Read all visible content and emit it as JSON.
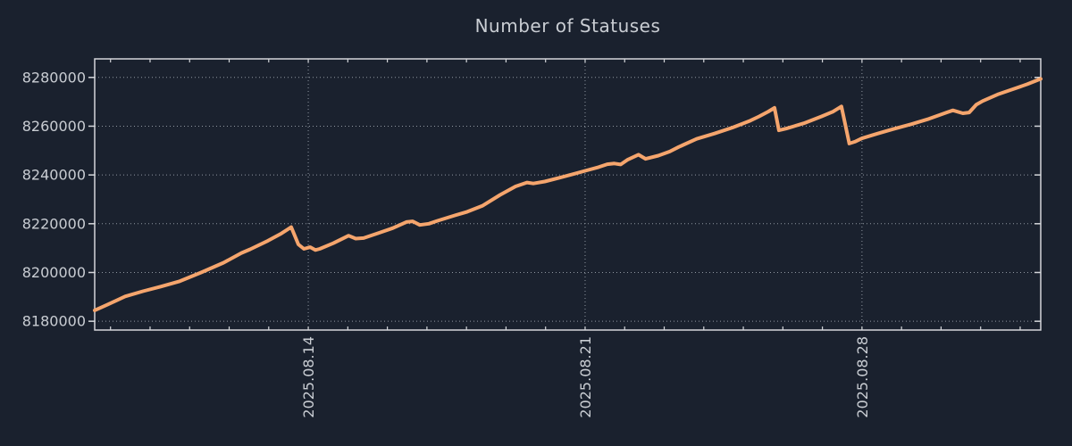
{
  "chart_data": {
    "type": "line",
    "title": "Number of Statuses",
    "series_name": "number-of-statuses",
    "colors": {
      "background": "#1a212e",
      "line": "#f5a56d",
      "axis": "#d4d6da",
      "grid": "#9097a1",
      "labels": "#c9cdd3",
      "title": "#c9cdd3"
    },
    "x_axis": {
      "unit": "days relative to 2025.08.14",
      "range": [
        -5.4,
        18.52
      ],
      "minor_tick_interval_days": 1,
      "major_ticks": [
        {
          "day": 0,
          "label": "2025.08.14"
        },
        {
          "day": 7,
          "label": "2025.08.21"
        },
        {
          "day": 14,
          "label": "2025.08.28"
        }
      ],
      "grid": true
    },
    "y_axis": {
      "range": [
        8176400,
        8287600
      ],
      "tick_values": [
        8180000,
        8200000,
        8220000,
        8240000,
        8260000,
        8280000
      ],
      "tick_labels": [
        "8180000",
        "8200000",
        "8220000",
        "8240000",
        "8260000",
        "8280000"
      ],
      "grid": true
    },
    "legend": "none",
    "points": [
      [
        -5.4,
        8184500
      ],
      [
        -5.08,
        8186800
      ],
      [
        -4.63,
        8190200
      ],
      [
        -4.18,
        8192300
      ],
      [
        -3.73,
        8194200
      ],
      [
        -3.27,
        8196300
      ],
      [
        -2.71,
        8200000
      ],
      [
        -2.14,
        8204000
      ],
      [
        -1.69,
        8208000
      ],
      [
        -1.47,
        8209500
      ],
      [
        -1.02,
        8213000
      ],
      [
        -0.68,
        8216000
      ],
      [
        -0.43,
        8218600
      ],
      [
        -0.25,
        8211500
      ],
      [
        -0.11,
        8209700
      ],
      [
        0.05,
        8210400
      ],
      [
        0.18,
        8209200
      ],
      [
        0.29,
        8209700
      ],
      [
        0.63,
        8212000
      ],
      [
        1.02,
        8215100
      ],
      [
        1.2,
        8213900
      ],
      [
        1.4,
        8214100
      ],
      [
        1.76,
        8216100
      ],
      [
        2.14,
        8218200
      ],
      [
        2.48,
        8220700
      ],
      [
        2.64,
        8221000
      ],
      [
        2.82,
        8219500
      ],
      [
        3.05,
        8220000
      ],
      [
        3.27,
        8221200
      ],
      [
        3.66,
        8223200
      ],
      [
        4.02,
        8224900
      ],
      [
        4.4,
        8227300
      ],
      [
        4.85,
        8231800
      ],
      [
        5.24,
        8235300
      ],
      [
        5.53,
        8236900
      ],
      [
        5.69,
        8236500
      ],
      [
        5.98,
        8237300
      ],
      [
        6.37,
        8238900
      ],
      [
        6.73,
        8240500
      ],
      [
        7.0,
        8241700
      ],
      [
        7.34,
        8243200
      ],
      [
        7.56,
        8244400
      ],
      [
        7.74,
        8244700
      ],
      [
        7.9,
        8244300
      ],
      [
        8.08,
        8246300
      ],
      [
        8.35,
        8248300
      ],
      [
        8.53,
        8246600
      ],
      [
        8.85,
        8247900
      ],
      [
        9.14,
        8249600
      ],
      [
        9.37,
        8251500
      ],
      [
        9.82,
        8254800
      ],
      [
        10.27,
        8257000
      ],
      [
        10.72,
        8259400
      ],
      [
        11.18,
        8262300
      ],
      [
        11.4,
        8264000
      ],
      [
        11.63,
        8266000
      ],
      [
        11.79,
        8267500
      ],
      [
        11.9,
        8258300
      ],
      [
        12.08,
        8259000
      ],
      [
        12.53,
        8261200
      ],
      [
        12.98,
        8264000
      ],
      [
        13.27,
        8266000
      ],
      [
        13.48,
        8268100
      ],
      [
        13.68,
        8252900
      ],
      [
        13.82,
        8253600
      ],
      [
        14.0,
        8255000
      ],
      [
        14.4,
        8257000
      ],
      [
        14.79,
        8258800
      ],
      [
        15.24,
        8260800
      ],
      [
        15.69,
        8263000
      ],
      [
        16.14,
        8265600
      ],
      [
        16.3,
        8266500
      ],
      [
        16.55,
        8265300
      ],
      [
        16.71,
        8265600
      ],
      [
        16.89,
        8268800
      ],
      [
        17.05,
        8270300
      ],
      [
        17.43,
        8273000
      ],
      [
        17.79,
        8275000
      ],
      [
        18.18,
        8277200
      ],
      [
        18.52,
        8279400
      ]
    ]
  }
}
